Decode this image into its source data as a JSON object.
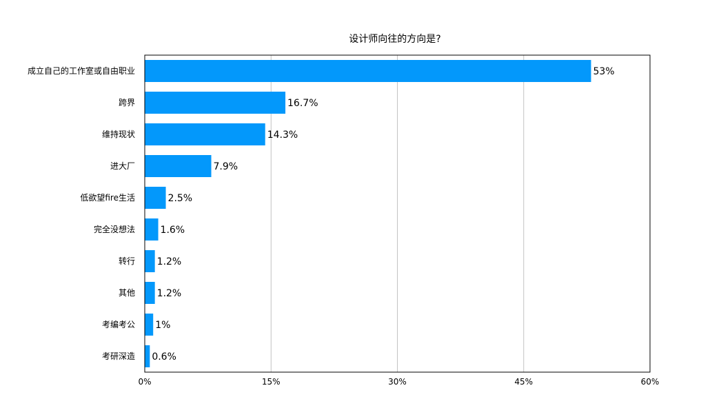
{
  "chart_data": {
    "type": "bar",
    "orientation": "horizontal",
    "title": "设计师向往的方向是?",
    "xlabel": "",
    "ylabel": "",
    "xlim": [
      0,
      60
    ],
    "x_ticks": [
      "0%",
      "15%",
      "30%",
      "45%",
      "60%"
    ],
    "x_tick_values": [
      0,
      15,
      30,
      45,
      60
    ],
    "grid": "vertical",
    "legend": "none",
    "bar_color": "#0398fb",
    "categories": [
      "成立自己的工作室或自由职业",
      "跨界",
      "维持现状",
      "进大厂",
      "低欲望fire生活",
      "完全没想法",
      "转行",
      "其他",
      "考编考公",
      "考研深造"
    ],
    "values": [
      53,
      16.7,
      14.3,
      7.9,
      2.5,
      1.6,
      1.2,
      1.2,
      1,
      0.6
    ],
    "data_labels": [
      "53%",
      "16.7%",
      "14.3%",
      "7.9%",
      "2.5%",
      "1.6%",
      "1.2%",
      "1.2%",
      "1%",
      "0.6%"
    ]
  }
}
